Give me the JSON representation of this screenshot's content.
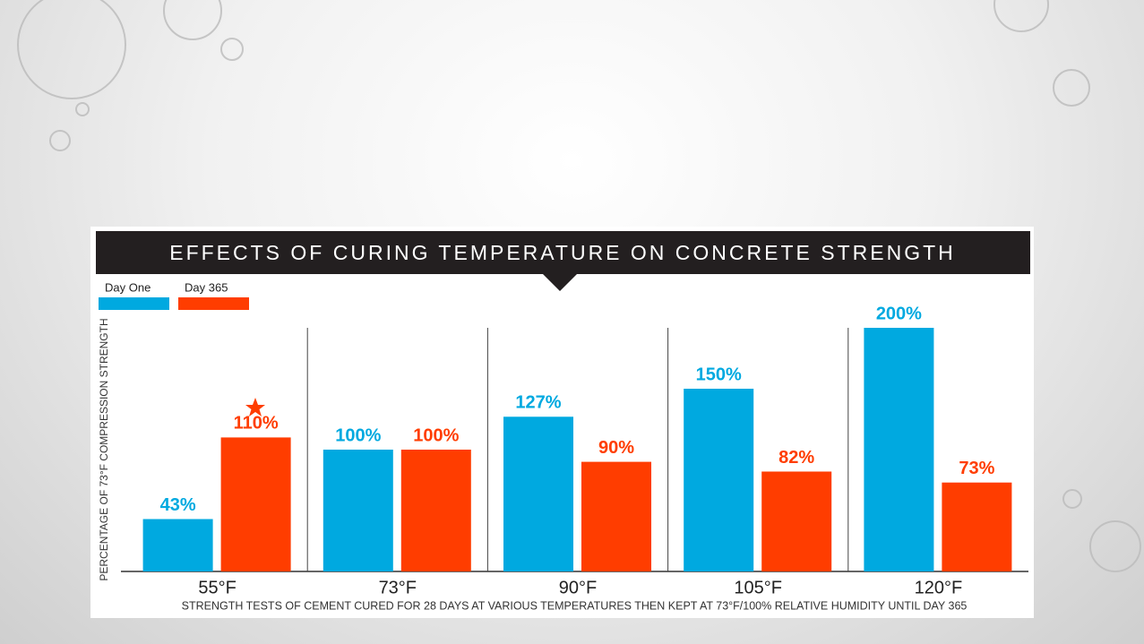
{
  "chart_data": {
    "type": "bar",
    "title": "EFFECTS OF CURING TEMPERATURE ON CONCRETE STRENGTH",
    "ylabel": "PERCENTAGE OF 73°F COMPRESSION STRENGTH",
    "note": "STRENGTH TESTS OF CEMENT CURED FOR 28 DAYS AT VARIOUS TEMPERATURES THEN KEPT AT 73°F/100% RELATIVE HUMIDITY UNTIL DAY 365",
    "categories": [
      "55°F",
      "73°F",
      "90°F",
      "105°F",
      "120°F"
    ],
    "series": [
      {
        "name": "Day One",
        "color": "#00a9e0",
        "values": [
          43,
          100,
          127,
          150,
          200
        ],
        "value_labels": [
          "43%",
          "100%",
          "127%",
          "150%",
          "200%"
        ]
      },
      {
        "name": "Day 365",
        "color": "#ff3d00",
        "values": [
          110,
          100,
          90,
          82,
          73
        ],
        "value_labels": [
          "110%",
          "100%",
          "90%",
          "82%",
          "73%"
        ]
      }
    ],
    "ylim": [
      0,
      200
    ],
    "legend": "top-left"
  }
}
